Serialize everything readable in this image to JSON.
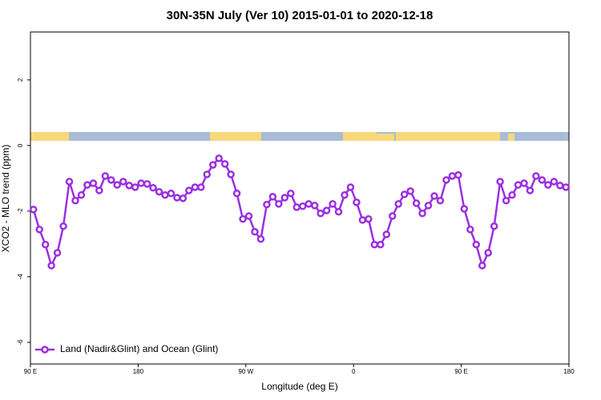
{
  "chart_data": {
    "type": "line",
    "title": "30N-35N July (Ver 10)   2015-01-01 to 2020-12-18",
    "xlabel": "Longitude (deg E)",
    "ylabel": "XCO2 - MLO trend (ppm)",
    "xlim": [
      90,
      540
    ],
    "ylim": [
      -6.66,
      3.46
    ],
    "xticks": [
      {
        "value": 90,
        "label": "90 E"
      },
      180,
      {
        "value": 270,
        "label": "90 W"
      },
      {
        "value": 360,
        "label": "0"
      },
      {
        "value": 450,
        "label": "90 E"
      },
      {
        "value": 540,
        "label": "180"
      }
    ],
    "yticks": [
      -6,
      -4,
      -2,
      0,
      2
    ],
    "legend": "bottom-left",
    "x": [
      92.5,
      97.5,
      102.5,
      107.5,
      112.5,
      117.5,
      122.5,
      127.5,
      132.5,
      137.5,
      142.5,
      147.5,
      152.5,
      157.5,
      162.5,
      167.5,
      172.5,
      177.5,
      182.5,
      187.5,
      192.5,
      197.5,
      202.5,
      207.5,
      212.5,
      217.5,
      222.5,
      227.5,
      232.5,
      237.5,
      242.5,
      247.5,
      252.5,
      257.5,
      262.5,
      267.5,
      272.5,
      277.5,
      282.5,
      287.5,
      292.5,
      297.5,
      302.5,
      307.5,
      312.5,
      317.5,
      322.5,
      327.5,
      332.5,
      337.5,
      342.5,
      347.5,
      352.5,
      357.5,
      362.5,
      367.5,
      372.5,
      377.5,
      382.5,
      387.5,
      392.5,
      397.5,
      402.5,
      407.5,
      412.5,
      417.5,
      422.5,
      427.5,
      432.5,
      437.5,
      442.5,
      447.5,
      452.5,
      457.5,
      462.5,
      467.5,
      472.5,
      477.5,
      482.5,
      487.5,
      492.5,
      497.5,
      502.5,
      507.5,
      512.5,
      517.5,
      522.5,
      527.5,
      532.5,
      537.5
    ],
    "series": [
      {
        "name": "Land (Nadir&Glint) and Ocean (Glint)",
        "color": "#9b30e0",
        "values": [
          -1.95,
          -2.56,
          -3.02,
          -3.66,
          -3.27,
          -2.46,
          -1.1,
          -1.68,
          -1.51,
          -1.2,
          -1.15,
          -1.37,
          -0.93,
          -1.05,
          -1.2,
          -1.1,
          -1.22,
          -1.27,
          -1.15,
          -1.17,
          -1.29,
          -1.41,
          -1.51,
          -1.46,
          -1.59,
          -1.61,
          -1.37,
          -1.27,
          -1.27,
          -0.88,
          -0.59,
          -0.39,
          -0.56,
          -0.88,
          -1.46,
          -2.24,
          -2.15,
          -2.63,
          -2.85,
          -1.8,
          -1.56,
          -1.78,
          -1.59,
          -1.46,
          -1.88,
          -1.85,
          -1.78,
          -1.83,
          -2.07,
          -1.98,
          -1.78,
          -2.02,
          -1.51,
          -1.27,
          -1.73,
          -2.27,
          -2.24,
          -3.02,
          -3.02,
          -2.71,
          -2.15,
          -1.78,
          -1.49,
          -1.39,
          -1.76,
          -2.07,
          -1.83,
          -1.54,
          -1.68,
          -1.05,
          -0.93,
          -0.9,
          -1.93,
          -2.56,
          -3.02,
          -3.66,
          -3.27,
          -2.46,
          -1.1,
          -1.68,
          -1.51,
          -1.2,
          -1.15,
          -1.37,
          -0.93,
          -1.05,
          -1.2,
          -1.1,
          -1.22,
          -1.27
        ]
      }
    ]
  }
}
